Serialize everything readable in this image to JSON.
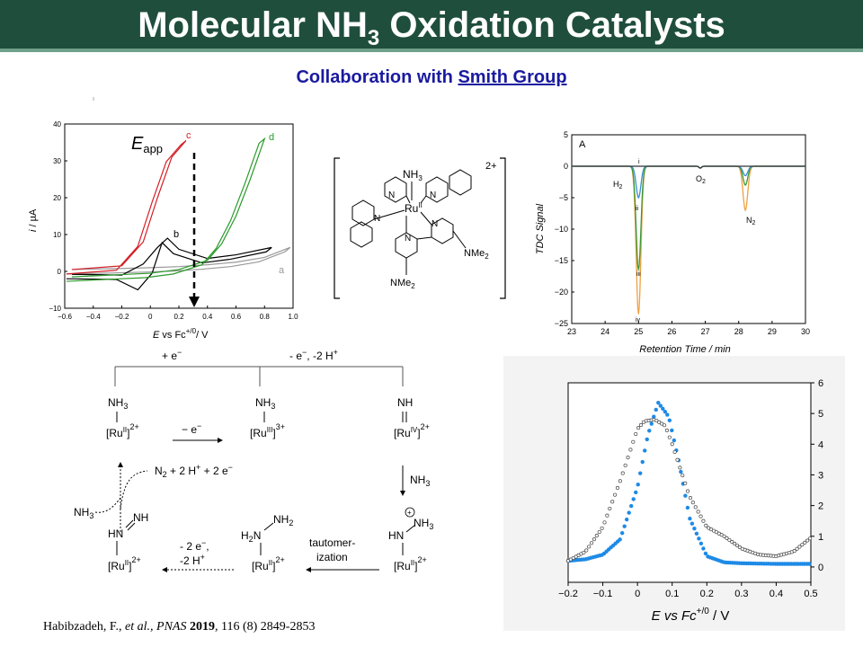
{
  "slide": {
    "title_main": "Molecular NH",
    "title_sub": "3",
    "title_rest": " Oxidation Catalysts",
    "subtitle_prefix": "Collaboration with ",
    "subtitle_link": "Smith Group"
  },
  "citation": {
    "authors": "Habibzadeh,  F., ",
    "etal": "et al., ",
    "journal": "PNAS",
    "year": " 2019",
    "rest": ", 116 (8) 2849-2853"
  },
  "cv_chart": {
    "xlabel_E": "E",
    "xlabel_rest": " vs Fc",
    "xlabel_sup": "+/0",
    "xlabel_unit": "/ V",
    "ylabel_i": "i",
    "ylabel_unit": " / µA",
    "eapp_E": "E",
    "eapp_sub": "app",
    "labels": {
      "a": "a",
      "b": "b",
      "c": "c",
      "d": "d"
    },
    "colors": {
      "a": "#999999",
      "b": "#000000",
      "c": "#d42027",
      "d": "#2a9a2a"
    }
  },
  "complex": {
    "nh3": "NH",
    "nh3_sub": "3",
    "ru": "Ru",
    "ru_ox": "II",
    "charge": "2+",
    "nme2": "NMe",
    "nme2_sub": "2",
    "n": "N"
  },
  "gc_chart": {
    "panel_label": "A",
    "ylabel": "TDC Signal",
    "xlabel": "Retention Time  / min",
    "h2": "H",
    "h2_sub": "2",
    "o2": "O",
    "o2_sub": "2",
    "n2": "N",
    "n2_sub": "2",
    "trace_labels": [
      "i",
      "ii",
      "iii",
      "iv"
    ],
    "colors": {
      "i": "#333333",
      "ii": "#3a8fd0",
      "iii": "#3a9a3a",
      "iv": "#f0a040"
    }
  },
  "scheme": {
    "top_left": "+ e",
    "top_left_sup": "−",
    "top_right": "- e",
    "top_right_sup": "−",
    "top_right_rest": ", -2 H",
    "top_right_sup2": "+",
    "mid_arrow": "− e",
    "mid_arrow_sup": "−",
    "nh3": "NH",
    "sub3": "3",
    "nh": "NH",
    "ru": "[Ru",
    "ru_close": "]",
    "ox_ii": "II",
    "ox_iii": "III",
    "ox_iv": "IV",
    "charge2": "2+",
    "charge3": "3+",
    "n2_products": "N",
    "n2_products_rest": " + 2 H",
    "n2_products_rest2": " + 2 e",
    "sup_plus": "+",
    "sup_minus": "−",
    "hn": "HN",
    "h2n": "H",
    "nh2": "NH",
    "sub2": "2",
    "minus2e": "- 2 e",
    "minus2h": "-2 H",
    "tauto1": "tautomer-",
    "tauto2": "ization",
    "nh3_side": "NH",
    "radical_plus": "+"
  },
  "dpv_chart": {
    "xlabel_E": "E vs Fc",
    "xlabel_sup": "+/0",
    "xlabel_unit": " / V",
    "colors": {
      "open": "#444444",
      "filled": "#1e8ae6"
    }
  },
  "chart_data": [
    {
      "type": "line",
      "title": "",
      "xlabel": "E vs Fc+/0/ V",
      "ylabel": "i / µA",
      "xlim": [
        -0.6,
        1.0
      ],
      "ylim": [
        -10,
        40
      ],
      "xticks": [
        -0.6,
        -0.4,
        -0.2,
        0.0,
        0.2,
        0.4,
        0.6,
        0.8,
        1.0
      ],
      "yticks": [
        -10,
        0,
        10,
        20,
        30,
        40
      ],
      "annotations": [
        "Eapp"
      ],
      "series": [
        {
          "name": "a",
          "x": [
            -0.55,
            -0.2,
            0.0,
            0.2,
            0.4,
            0.6,
            0.8,
            0.98
          ],
          "y": [
            0.5,
            0.8,
            1.0,
            1.3,
            1.8,
            2.5,
            3.8,
            6.5
          ]
        },
        {
          "name": "b",
          "x": [
            -0.55,
            -0.2,
            -0.05,
            0.05,
            0.12,
            0.2,
            0.4,
            0.6,
            0.85
          ],
          "y": [
            -0.8,
            -1.0,
            2.0,
            6.5,
            9.0,
            6.0,
            3.5,
            4.5,
            6.5
          ]
        },
        {
          "name": "c",
          "x": [
            -0.55,
            -0.2,
            -0.05,
            0.05,
            0.15,
            0.25
          ],
          "y": [
            0.5,
            1.5,
            8.0,
            20.0,
            31.0,
            35.5
          ]
        },
        {
          "name": "d",
          "x": [
            -0.55,
            0.0,
            0.2,
            0.4,
            0.5,
            0.6,
            0.7,
            0.8
          ],
          "y": [
            -1.5,
            -0.5,
            0.5,
            3.0,
            7.5,
            15.0,
            25.0,
            36.0
          ]
        }
      ]
    },
    {
      "type": "line",
      "title": "A",
      "xlabel": "Retention Time  / min",
      "ylabel": "TDC Signal",
      "xlim": [
        23,
        30
      ],
      "ylim": [
        -25,
        5
      ],
      "xticks": [
        23,
        24,
        25,
        26,
        27,
        28,
        29,
        30
      ],
      "yticks": [
        5,
        0,
        -5,
        -10,
        -15,
        -20,
        -25
      ],
      "annotations": [
        "H2",
        "O2",
        "N2",
        "i",
        "ii",
        "iii",
        "iv"
      ],
      "series": [
        {
          "name": "i",
          "peaks": [
            {
              "x": 25.0,
              "y": 0.0
            },
            {
              "x": 28.2,
              "y": 0.0
            }
          ]
        },
        {
          "name": "ii",
          "peaks": [
            {
              "x": 25.0,
              "y": -5.0
            },
            {
              "x": 28.2,
              "y": -1.5
            }
          ]
        },
        {
          "name": "iii",
          "peaks": [
            {
              "x": 25.0,
              "y": -16.5
            },
            {
              "x": 28.2,
              "y": -3.0
            }
          ]
        },
        {
          "name": "iv",
          "peaks": [
            {
              "x": 25.0,
              "y": -23.5
            },
            {
              "x": 28.2,
              "y": -7.0
            }
          ]
        }
      ]
    },
    {
      "type": "scatter",
      "title": "",
      "xlabel": "E vs Fc+/0 / V",
      "ylabel": "",
      "xlim": [
        -0.2,
        0.5
      ],
      "ylim": [
        -0.5,
        6
      ],
      "xticks": [
        -0.2,
        -0.1,
        0.0,
        0.1,
        0.2,
        0.3,
        0.4,
        0.5
      ],
      "yticks": [
        0,
        1,
        2,
        3,
        4,
        5,
        6
      ],
      "y_axis_side": "right",
      "series": [
        {
          "name": "open",
          "x": [
            -0.2,
            -0.15,
            -0.1,
            -0.05,
            0.0,
            0.02,
            0.05,
            0.08,
            0.1,
            0.15,
            0.2,
            0.25,
            0.3,
            0.35,
            0.4,
            0.45,
            0.5
          ],
          "y": [
            0.2,
            0.5,
            1.3,
            2.8,
            4.5,
            4.75,
            4.8,
            4.6,
            4.0,
            2.3,
            1.3,
            1.0,
            0.6,
            0.4,
            0.35,
            0.5,
            0.95
          ]
        },
        {
          "name": "filled",
          "x": [
            -0.2,
            -0.15,
            -0.1,
            -0.05,
            0.0,
            0.03,
            0.06,
            0.09,
            0.12,
            0.15,
            0.2,
            0.25,
            0.3,
            0.4,
            0.5
          ],
          "y": [
            0.2,
            0.25,
            0.4,
            0.9,
            2.6,
            4.3,
            5.35,
            4.9,
            3.4,
            1.6,
            0.35,
            0.15,
            0.12,
            0.1,
            0.1
          ]
        }
      ]
    }
  ]
}
